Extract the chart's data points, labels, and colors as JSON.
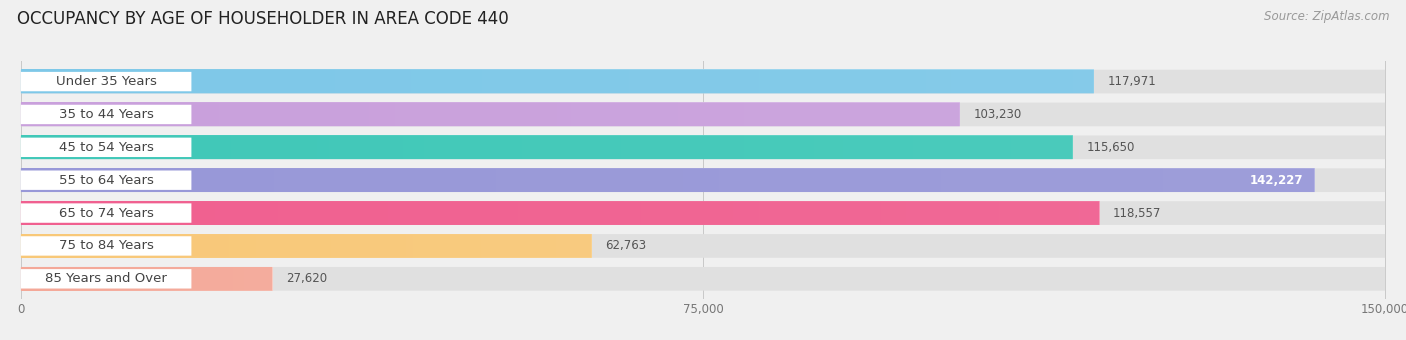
{
  "title": "OCCUPANCY BY AGE OF HOUSEHOLDER IN AREA CODE 440",
  "source": "Source: ZipAtlas.com",
  "categories": [
    "Under 35 Years",
    "35 to 44 Years",
    "45 to 54 Years",
    "55 to 64 Years",
    "65 to 74 Years",
    "75 to 84 Years",
    "85 Years and Over"
  ],
  "values": [
    117971,
    103230,
    115650,
    142227,
    118557,
    62763,
    27620
  ],
  "bar_colors": [
    "#7ec8e8",
    "#c9a0dc",
    "#40c8b8",
    "#9898d8",
    "#f06090",
    "#f8c878",
    "#f4a898"
  ],
  "xlim": [
    0,
    150000
  ],
  "xticks": [
    0,
    75000,
    150000
  ],
  "xticklabels": [
    "0",
    "75,000",
    "150,000"
  ],
  "title_fontsize": 12,
  "label_fontsize": 9.5,
  "value_fontsize": 8.5,
  "background_color": "#f0f0f0",
  "bar_bg_color": "#e0e0e0",
  "value_inside_threshold": 0.85
}
